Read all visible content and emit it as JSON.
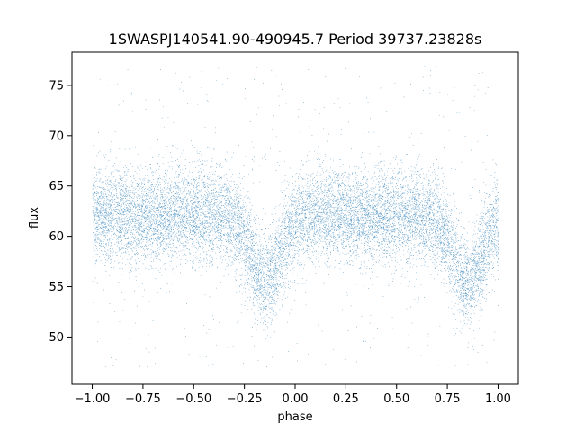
{
  "chart_data": {
    "type": "scatter",
    "title": "1SWASPJ140541.90-490945.7 Period 39737.23828s",
    "xlabel": "phase",
    "ylabel": "flux",
    "xlim": [
      -1.1,
      1.1
    ],
    "ylim": [
      45.3,
      78.3
    ],
    "x_ticks": [
      -1.0,
      -0.75,
      -0.5,
      -0.25,
      0.0,
      0.25,
      0.5,
      0.75,
      1.0
    ],
    "x_tick_labels": [
      "−1.00",
      "−0.75",
      "−0.50",
      "−0.25",
      "0.00",
      "0.25",
      "0.50",
      "0.75",
      "1.00"
    ],
    "y_ticks": [
      50,
      55,
      60,
      65,
      70,
      75
    ],
    "y_tick_labels": [
      "50",
      "55",
      "60",
      "65",
      "70",
      "75"
    ],
    "grid": false,
    "legend": "none",
    "point_color": "#1f77b4",
    "series": [
      {
        "x_range": [
          -1.0,
          1.0
        ],
        "baseline_flux": 62.0,
        "scatter_sd": 2.3,
        "flux_range": [
          47,
          77
        ],
        "dips": [
          {
            "phase": -0.15,
            "min_flux": 55.5,
            "width": 0.07
          },
          {
            "phase": 0.85,
            "min_flux": 55.5,
            "width": 0.07
          }
        ],
        "approx_point_count": 60000
      }
    ]
  }
}
